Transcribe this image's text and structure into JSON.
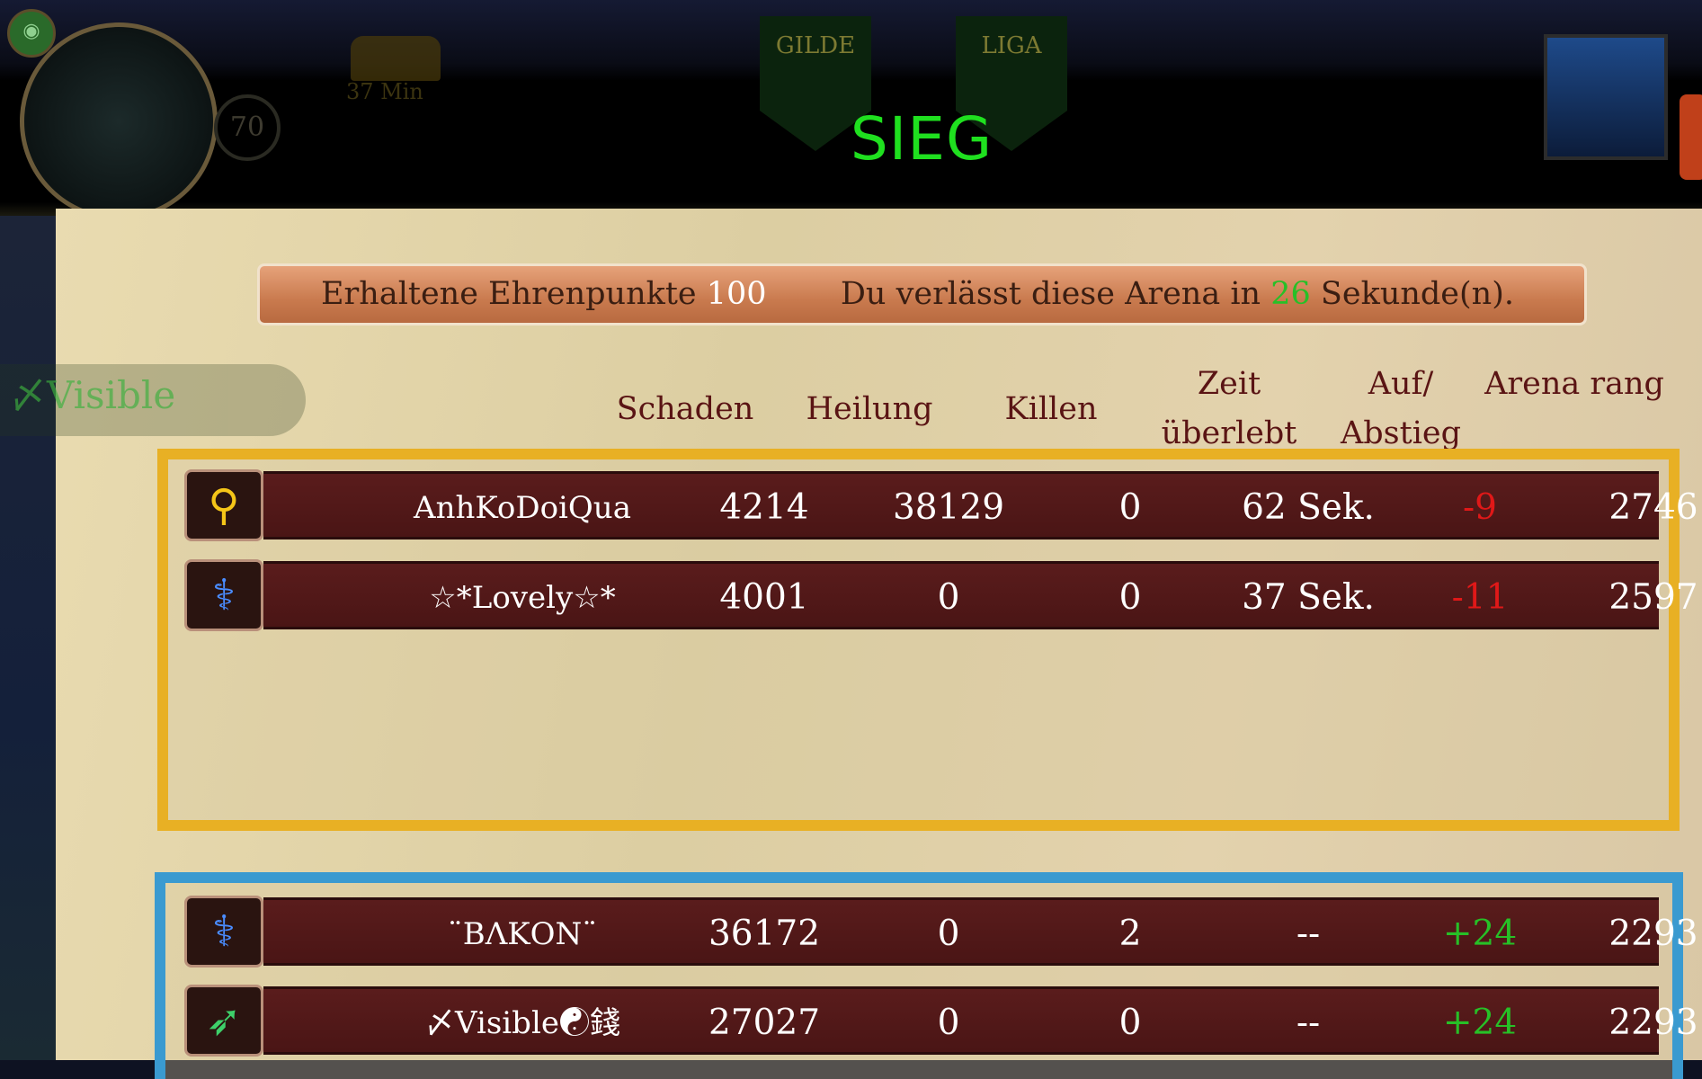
{
  "hud": {
    "level": "70",
    "chest_timer": "37 Min",
    "guild_tab": "GILDE",
    "league_tab": "LIGA",
    "player_tag": "Visible"
  },
  "title": "SIEG",
  "banner": {
    "honor_label": "Erhaltene Ehrenpunkte",
    "honor_value": "100",
    "leave_prefix": "Du verlässt diese Arena in",
    "leave_seconds": "26",
    "leave_suffix": "Sekunde(n)."
  },
  "headers": {
    "damage": "Schaden",
    "healing": "Heilung",
    "kills": "Killen",
    "time": "Zeit überlebt",
    "updown": "Auf/ Abstieg",
    "rank": "Arena rang"
  },
  "colors": {
    "win": "#1fe01f",
    "positive": "#27c027",
    "negative": "#e01818",
    "team_gold": "#e8b024",
    "team_blue": "#3a9ad0"
  },
  "teams": [
    {
      "rows": [
        {
          "icon": "golden-mace-icon",
          "name": "AnhKoDoiQua",
          "damage": "4214",
          "healing": "38129",
          "kills": "0",
          "time": "62 Sek.",
          "change": "-9",
          "rank": "2746"
        },
        {
          "icon": "blue-staff-icon",
          "name": "☆*Lovely☆*",
          "damage": "4001",
          "healing": "0",
          "kills": "0",
          "time": "37 Sek.",
          "change": "-11",
          "rank": "2597"
        }
      ]
    },
    {
      "rows": [
        {
          "icon": "blue-staff-icon",
          "name": "¨ΒΛΚΟΝ¨",
          "damage": "36172",
          "healing": "0",
          "kills": "2",
          "time": "--",
          "change": "+24",
          "rank": "2293"
        },
        {
          "icon": "green-bow-icon",
          "name": "〆Visible☯錢",
          "damage": "27027",
          "healing": "0",
          "kills": "0",
          "time": "--",
          "change": "+24",
          "rank": "2293"
        }
      ]
    }
  ]
}
